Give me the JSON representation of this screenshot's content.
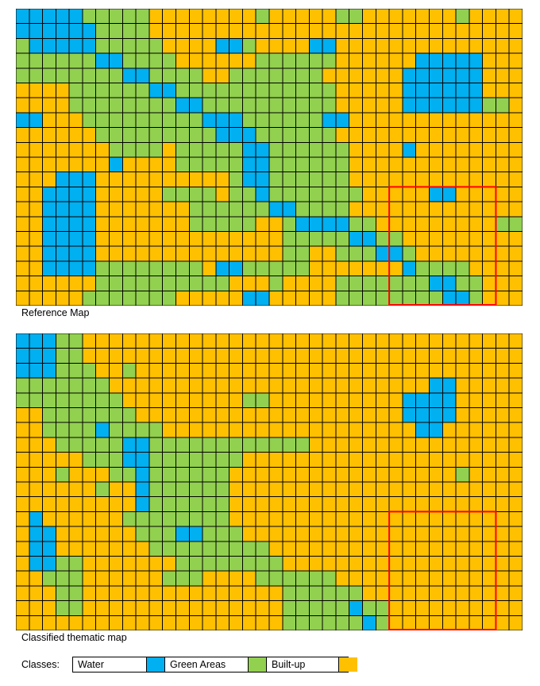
{
  "colors": {
    "water": "#00B0F0",
    "green": "#92D050",
    "built": "#FFC000",
    "highlight": "#FF0000",
    "grid": "#000000"
  },
  "reference_map": {
    "caption": "Reference Map",
    "rows": [
      "WWWWWGGGGGBBBBBBBBGBBBBBGGBBBBBBBGBBBB",
      "WWWWWWGGGGBBBBBBBBBBBBBBBBBBBBBBBBBBBB",
      "GWWWWWGGGGGBBBBWWGBBBBWWBBBBBBBBBBBBBB",
      "GGGGGGWWGGGGBBBBBBGGGGGGBBBBBBWWWWWBBB",
      "GGGGGGGGWWGGGGBBGGGGGGGBBBBBBWWWWWWBBB",
      "BBBBGGGGGGWWGGGGGGGGGGGGBBBBBWWWWWWBBB",
      "BBBBGGGGGGGGWWGGGGGGGGGGBBBBBWWWWWWGGB",
      "WWBBBGGGGGGGGGWWWGGGGGGWWBBBBBBBBBBBBB",
      "BBBBBBGGGGGGGGGWWWGGGGGGBBBBBBBBBBBBBB",
      "BBBBBBBGGGGBGGGGGWWGGGGGGBBBBWBBBBBBBB",
      "BBBBBBBWBBBBGGGGGWWGGGGGGBBBBBBBBBBBBB",
      "BBBWWWBBBBBBBBBBGWWGGGGGGBBBBBBBBBBBBB",
      "BBWWWWBBBBBGGGGBGGWGGGGGGGBBBBBWWBBBBB",
      "BBWWWWBBBBBBBGGGGGGWWGGGGBBBBBBBBBBBBB",
      "BBWWWWBBBBBBBGGGGGBBGWWWWGGBBBBBBBBBGG",
      "BBWWWWBBBBBBBBBBBBBBGGGGGWWGGBBBBBBBBB",
      "BBWWWWBBBBBBBBBBBBBBGGBBGGGWWGBBBBBBBB",
      "BBWWWWGGGGGGGGBWWGGGGGBBBBBBBWGGGGBBBB",
      "BBBBBBGGGGGGGGGGBBBGBBBBGGGGGGGWWGGBBB",
      "BBBBBGGGGGGGBBBBBWWBBBBBGGGGGGGGWWGBBB"
    ]
  },
  "classified_map": {
    "caption": "Classified thematic map",
    "rows": [
      "WWWGGBBBBBBBBBBBBBBBBBBBBBBBBBBBBBBBBB",
      "WWWGGBBBBBBBBBBBBBBBBBBBBBBBBBBBBBBBBB",
      "WWWGGGBBGBBBBBBBBBBBBBBBBBBBBBBBBBBBBB",
      "GGGGGGGBBBBBBBBBBBBBBBBBBBBBBBBWWBBBBB",
      "GGGGGGGGBBBBBBBBBGGBBBBBBBBBBWWWWBBBBB",
      "BBGGGGGGGBBBBBBBBBBBBBBBBBBBBWWWWBBBBB",
      "BBGGGGWGGGGBBBBBBBBBBBBBBBBBBBWWBBBBBB",
      "BBBGGGGGWWGGGGGGGGGGGGBBBBBBBBBBBBBBBB",
      "BBBBBGGGWWGGGGGGGBBBBBBBBBBBBBBBBBBBBB",
      "BBBGBBBGGWGGGGGGBBBBBBBBBBBBBBBBBGBBBB",
      "BBBBBBGBBWGGGGGGBBBBBBBBBBBBBBBBBBBBBB",
      "BBBBBBBBBWGGGGGGBBBBBBBBBBBBBBBBBBBBBB",
      "BWBBBBBBGGGGGGGGBBBBBBBBBBBBBBBBBBBBBB",
      "BWWBBBBBBGGGWWGGGBBBBBBBBBBBBBBBBBBBBB",
      "BWWBBBBBBBGGGGGGGGGBBBBBBBBBBBBBBBBBBB",
      "BWWGGBBBBBBBGGGGGGGGBBBBBBBBBBBBBBBBBB",
      "BBGGGBBBBBBGGGBBBBGGGGGGBBBBBBBBBBBBBB",
      "BBBGGBBBBBBBBBBBBBBBGGGGGGBBBBBBBBBBBB",
      "BBBGGBBBBBBBBBBBBBBBGGGGGWGGBBBBBBBBBB",
      "BBBBBBBBBBBBBBBBBBBBGGGGGGWGBBBBBBBBBB"
    ]
  },
  "legend": {
    "label": "Classes:",
    "items": [
      {
        "name": "Water",
        "color": "#00B0F0"
      },
      {
        "name": "Green Areas",
        "color": "#92D050"
      },
      {
        "name": "Built-up",
        "color": "#FFC000"
      }
    ]
  }
}
